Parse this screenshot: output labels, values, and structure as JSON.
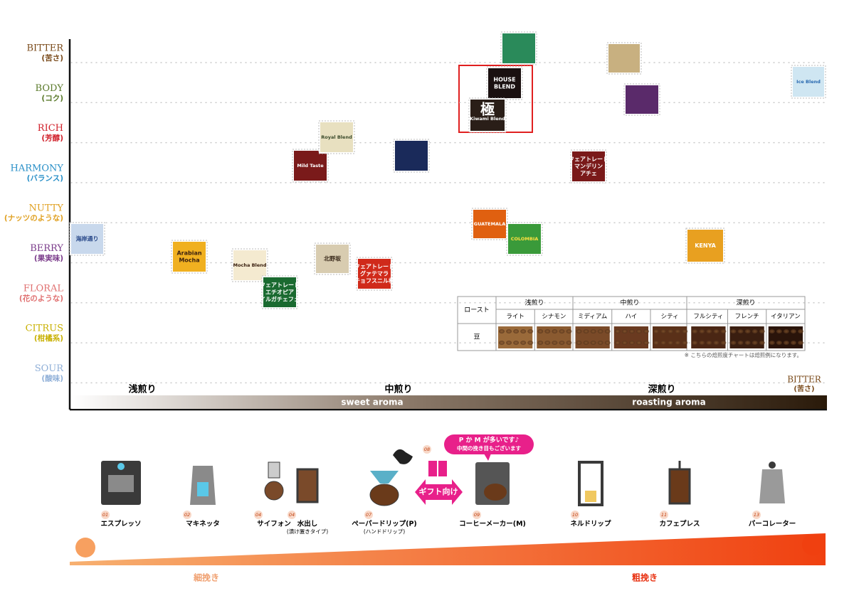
{
  "flavor_axis": [
    {
      "name": "BITTER",
      "ja": "(苦さ)",
      "color": "#7a4a1a"
    },
    {
      "name": "BODY",
      "ja": "(コク)",
      "color": "#5a7a2a"
    },
    {
      "name": "RICH",
      "ja": "(芳醇)",
      "color": "#d0202a"
    },
    {
      "name": "HARMONY",
      "ja": "(バランス)",
      "color": "#2a90c8"
    },
    {
      "name": "NUTTY",
      "ja": "(ナッツのような)",
      "color": "#e0a020"
    },
    {
      "name": "BERRY",
      "ja": "(果実味)",
      "color": "#7a3a8a"
    },
    {
      "name": "FLORAL",
      "ja": "(花のような)",
      "color": "#e07070"
    },
    {
      "name": "CITRUS",
      "ja": "(柑橘系)",
      "color": "#c8b000"
    },
    {
      "name": "SOUR",
      "ja": "(酸味)",
      "color": "#90b0d8"
    }
  ],
  "roast_axis": {
    "light": "浅煎り",
    "medium": "中煎り",
    "dark": "深煎り",
    "end_name": "BITTER",
    "end_ja": "(苦さ)",
    "sweet": "sweet aroma",
    "roasting": "roasting aroma"
  },
  "stamps": [
    {
      "lines": [
        "海岸通り"
      ]
    },
    {
      "lines": [
        "Arabian",
        "Mocha"
      ]
    },
    {
      "lines": [
        "Mocha Blend"
      ]
    },
    {
      "lines": [
        "フェアトレード",
        "エチオピア",
        "イルガチェフェ"
      ]
    },
    {
      "lines": [
        "Mild Taste"
      ]
    },
    {
      "lines": [
        "Royal Blend"
      ]
    },
    {
      "lines": [
        "北野坂"
      ]
    },
    {
      "lines": [
        "フェアトレード",
        "グァテマラ",
        "チョフスニル村"
      ]
    },
    {
      "lines": []
    },
    {
      "lines": []
    },
    {
      "lines": [
        "HOUSE",
        "BLEND"
      ]
    },
    {
      "lines": [
        "極",
        "Kiwami Blend"
      ]
    },
    {
      "lines": [
        "GUATEMALA"
      ]
    },
    {
      "lines": [
        "COLOMBIA"
      ]
    },
    {
      "lines": [
        "フェアトレード",
        "マンデリン",
        "アチェ"
      ]
    },
    {
      "lines": []
    },
    {
      "lines": []
    },
    {
      "lines": [
        "KENYA"
      ]
    },
    {
      "lines": [
        "Ice Blend"
      ]
    }
  ],
  "roast_table": {
    "row_header": "ロースト",
    "bean_header": "豆",
    "groups": [
      "浅煎り",
      "中煎り",
      "深煎り"
    ],
    "levels": [
      "ライト",
      "シナモン",
      "ミディアム",
      "ハイ",
      "シティ",
      "フルシティ",
      "フレンチ",
      "イタリアン"
    ],
    "note": "※ こちらの焙煎度チャートは焙煎例になります。"
  },
  "brewing": {
    "bubble": [
      "P か M が多いです♪",
      "中間の挽き目もございます"
    ],
    "gift": {
      "number": "08",
      "label": "ギフト向け"
    },
    "methods": [
      {
        "number": "01",
        "name": "エスプレッソ"
      },
      {
        "number": "02",
        "name": "マキネッタ"
      },
      {
        "number": "04",
        "name": "サイフォン"
      },
      {
        "number": "04",
        "name": "水出し",
        "sub": "(漬け置きタイプ)"
      },
      {
        "number": "07",
        "name": "ペーパードリップ(P)",
        "sub": "(ハンドドリップ)"
      },
      {
        "number": "09",
        "name": "コーヒーメーカー(M)"
      },
      {
        "number": "10",
        "name": "ネルドリップ"
      },
      {
        "number": "11",
        "name": "カフェプレス"
      },
      {
        "number": "13",
        "name": "パーコレーター"
      }
    ]
  },
  "grind": {
    "fine": "細挽き",
    "coarse": "粗挽き"
  }
}
